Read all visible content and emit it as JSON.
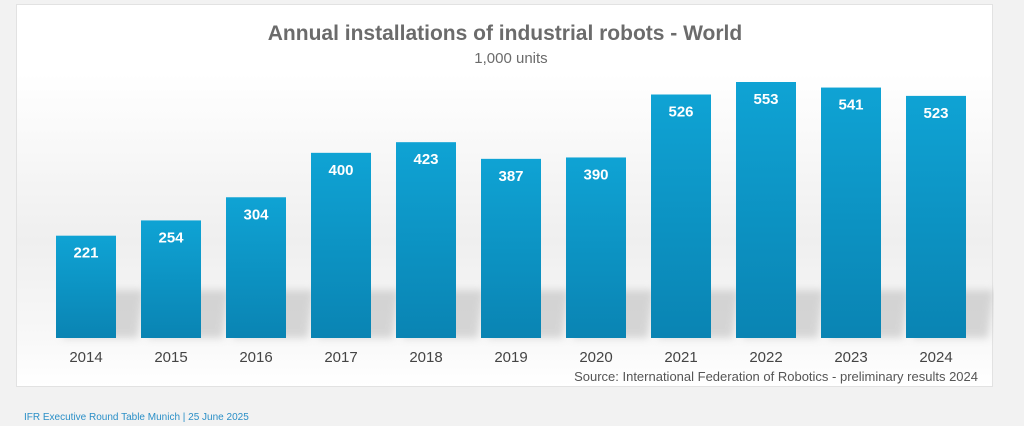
{
  "chart_data": {
    "type": "bar",
    "title": "Annual installations of industrial robots - World",
    "subtitle": "1,000 units",
    "categories": [
      "2014",
      "2015",
      "2016",
      "2017",
      "2018",
      "2019",
      "2020",
      "2021",
      "2022",
      "2023",
      "2024"
    ],
    "values": [
      221,
      254,
      304,
      400,
      423,
      387,
      390,
      526,
      553,
      541,
      523
    ],
    "xlabel": "",
    "ylabel": "",
    "ylim": [
      0,
      553
    ],
    "grid": false,
    "legend": "none",
    "data_labels": "inside-top",
    "source": "Source: International Federation of Robotics - preliminary results 2024",
    "colors": {
      "bar_top": "#0fa3d4",
      "bar_bottom": "#0a84b3"
    }
  },
  "footer": "IFR Executive Round Table Munich | 25 June 2025"
}
